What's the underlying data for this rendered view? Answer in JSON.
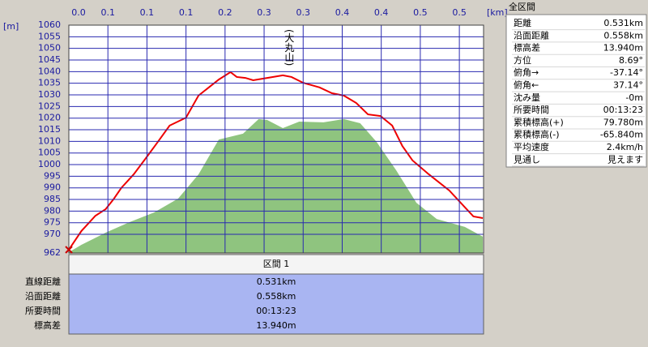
{
  "chart_data": {
    "type": "profile",
    "x_unit": "[km]",
    "y_unit": "[m]",
    "xlim": [
      0,
      0.531
    ],
    "ylim": [
      962,
      1060
    ],
    "xticks": [
      {
        "value": 0,
        "label": "0.0"
      },
      {
        "value": 0.05,
        "label": "0.1"
      },
      {
        "value": 0.1,
        "label": "0.1"
      },
      {
        "value": 0.15,
        "label": "0.1"
      },
      {
        "value": 0.2,
        "label": "0.2"
      },
      {
        "value": 0.25,
        "label": "0.3"
      },
      {
        "value": 0.3,
        "label": "0.3"
      },
      {
        "value": 0.35,
        "label": "0.4"
      },
      {
        "value": 0.4,
        "label": "0.4"
      },
      {
        "value": 0.45,
        "label": "0.5"
      },
      {
        "value": 0.5,
        "label": "0.5"
      }
    ],
    "yticks": [
      962,
      970,
      975,
      980,
      985,
      990,
      995,
      1000,
      1005,
      1010,
      1015,
      1020,
      1025,
      1030,
      1035,
      1040,
      1045,
      1050,
      1055,
      1060
    ],
    "grid": true,
    "annotations": [
      {
        "text": "(大丸山)",
        "x": 0.282
      }
    ],
    "series": [
      {
        "kind": "area",
        "color": "#8fc47f",
        "x": [
          0,
          0.016,
          0.047,
          0.078,
          0.109,
          0.14,
          0.166,
          0.192,
          0.223,
          0.243,
          0.254,
          0.274,
          0.295,
          0.326,
          0.352,
          0.373,
          0.394,
          0.419,
          0.445,
          0.471,
          0.507,
          0.53
        ],
        "values": [
          962.3,
          965.5,
          970.7,
          975.3,
          979.4,
          985.4,
          995.8,
          1010.8,
          1013.3,
          1019.6,
          1019.2,
          1015.7,
          1018.5,
          1018.2,
          1019.6,
          1017.8,
          1009.8,
          997.6,
          983.6,
          976.6,
          973.2,
          969.0
        ]
      },
      {
        "kind": "line",
        "color": "#ee0000",
        "x": [
          0,
          0.016,
          0.034,
          0.047,
          0.057,
          0.067,
          0.083,
          0.098,
          0.114,
          0.129,
          0.15,
          0.166,
          0.192,
          0.207,
          0.215,
          0.226,
          0.236,
          0.254,
          0.274,
          0.285,
          0.3,
          0.321,
          0.337,
          0.352,
          0.368,
          0.383,
          0.399,
          0.414,
          0.427,
          0.44,
          0.461,
          0.487,
          0.518,
          0.53
        ],
        "values": [
          963.4,
          971.4,
          978.0,
          980.8,
          985.0,
          989.9,
          995.8,
          1002.5,
          1009.8,
          1016.8,
          1020.2,
          1029.7,
          1036.6,
          1039.8,
          1037.7,
          1037.3,
          1036.3,
          1037.3,
          1038.4,
          1037.7,
          1035.2,
          1033.2,
          1030.7,
          1029.7,
          1026.5,
          1021.6,
          1020.9,
          1016.8,
          1008.0,
          1001.8,
          995.8,
          988.9,
          977.7,
          977.0
        ]
      }
    ]
  },
  "summary": {
    "title": "全区間",
    "rows": [
      [
        "距離",
        "0.531km"
      ],
      [
        "沿面距離",
        "0.558km"
      ],
      [
        "標高差",
        "13.940m"
      ],
      [
        "方位",
        "8.69°"
      ],
      [
        "俯角→",
        "-37.14°"
      ],
      [
        "俯角←",
        "37.14°"
      ],
      [
        "沈み量",
        "-0m"
      ],
      [
        "所要時間",
        "00:13:23"
      ],
      [
        "累積標高(+)",
        "79.780m"
      ],
      [
        "累積標高(-)",
        "-65.840m"
      ],
      [
        "平均速度",
        "2.4km/h"
      ],
      [
        "見通し",
        "見えます"
      ]
    ]
  },
  "section": {
    "title": "区間 1",
    "rows": [
      [
        "直線距離",
        "0.531km"
      ],
      [
        "沿面距離",
        "0.558km"
      ],
      [
        "所要時間",
        "00:13:23"
      ],
      [
        "標高差",
        "13.940m"
      ]
    ]
  }
}
